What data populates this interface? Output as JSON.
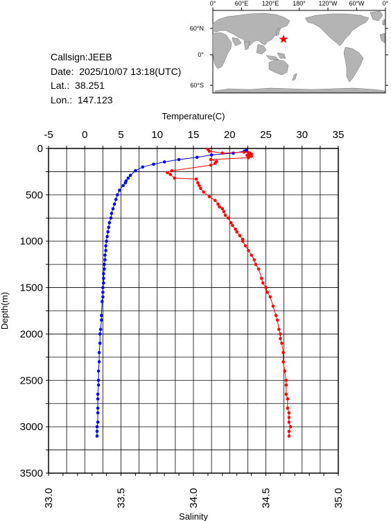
{
  "station": {
    "callsign_label": "Callsign:",
    "callsign": "JEEB",
    "date_label": "Date:",
    "date": "2025/10/07 13:18(UTC)",
    "lat_label": "Lat.:",
    "lat": "38.251",
    "lon_label": "Lon.:",
    "lon": "147.123"
  },
  "map": {
    "top_ticks": [
      "0°",
      "60°E",
      "120°E",
      "180°",
      "120°W",
      "60°W",
      "0°"
    ],
    "lat_ticks": [
      "60°N",
      "0°",
      "60°S"
    ],
    "land_color": "#b4b4b4",
    "ocean_color": "#ffffff",
    "marker_color": "#ff0000",
    "marker_icon": "star"
  },
  "chart_data": {
    "type": "scatter",
    "title": "",
    "y_axis": {
      "label": "Depth(m)",
      "range": [
        0,
        3500
      ],
      "inverted": true,
      "ticks": [
        "0",
        "500",
        "1000",
        "1500",
        "2000",
        "2500",
        "3000",
        "3500"
      ]
    },
    "x_top_axis": {
      "label": "Temperature(C)",
      "range": [
        -5,
        35
      ],
      "ticks": [
        "-5",
        "0",
        "5",
        "10",
        "15",
        "20",
        "25",
        "30",
        "35"
      ]
    },
    "x_bottom_axis": {
      "label": "Salinity",
      "range": [
        33.0,
        35.0
      ],
      "ticks": [
        "33.0",
        "33.5",
        "34.0",
        "34.5",
        "35.0"
      ]
    },
    "grid": true,
    "series": [
      {
        "color": "#0000ff",
        "axis": "top",
        "points": [
          [
            22.3,
            20
          ],
          [
            22.0,
            30
          ],
          [
            20.5,
            50
          ],
          [
            17.5,
            70
          ],
          [
            15.5,
            95
          ],
          [
            13.0,
            120
          ],
          [
            11.0,
            145
          ],
          [
            9.5,
            170
          ],
          [
            8.0,
            200
          ],
          [
            7.0,
            240
          ],
          [
            6.3,
            290
          ],
          [
            6.0,
            320
          ],
          [
            5.7,
            350
          ],
          [
            5.6,
            370
          ],
          [
            5.3,
            400
          ],
          [
            4.8,
            450
          ],
          [
            4.5,
            500
          ],
          [
            4.3,
            550
          ],
          [
            4.1,
            600
          ],
          [
            3.9,
            650
          ],
          [
            3.7,
            700
          ],
          [
            3.6,
            750
          ],
          [
            3.4,
            800
          ],
          [
            3.3,
            850
          ],
          [
            3.2,
            900
          ],
          [
            3.1,
            950
          ],
          [
            3.0,
            1000
          ],
          [
            2.9,
            1050
          ],
          [
            2.9,
            1100
          ],
          [
            2.8,
            1150
          ],
          [
            2.8,
            1200
          ],
          [
            2.7,
            1250
          ],
          [
            2.7,
            1300
          ],
          [
            2.6,
            1350
          ],
          [
            2.6,
            1400
          ],
          [
            2.6,
            1450
          ],
          [
            2.5,
            1500
          ],
          [
            2.5,
            1550
          ],
          [
            2.5,
            1600
          ],
          [
            2.4,
            1650
          ],
          [
            2.3,
            1800
          ],
          [
            2.3,
            1850
          ],
          [
            2.2,
            1950
          ],
          [
            2.1,
            2000
          ],
          [
            2.1,
            2100
          ],
          [
            2.0,
            2200
          ],
          [
            2.0,
            2300
          ],
          [
            1.9,
            2400
          ],
          [
            1.9,
            2500
          ],
          [
            1.9,
            2550
          ],
          [
            1.8,
            2650
          ],
          [
            1.8,
            2700
          ],
          [
            1.8,
            2800
          ],
          [
            1.8,
            2850
          ],
          [
            1.8,
            2950
          ],
          [
            1.7,
            3000
          ],
          [
            1.7,
            3050
          ],
          [
            1.7,
            3100
          ]
        ]
      },
      {
        "color": "#ff0000",
        "axis": "bottom",
        "points": [
          [
            34.1,
            10
          ],
          [
            34.11,
            30
          ],
          [
            34.2,
            50
          ],
          [
            34.35,
            40
          ],
          [
            34.38,
            45
          ],
          [
            34.39,
            50
          ],
          [
            34.4,
            60
          ],
          [
            34.39,
            70
          ],
          [
            34.37,
            75
          ],
          [
            34.4,
            85
          ],
          [
            34.38,
            100
          ],
          [
            34.12,
            120
          ],
          [
            34.16,
            140
          ],
          [
            34.15,
            160
          ],
          [
            34.12,
            180
          ],
          [
            33.85,
            240
          ],
          [
            33.82,
            260
          ],
          [
            33.84,
            280
          ],
          [
            33.87,
            320
          ],
          [
            34.02,
            330
          ],
          [
            34.03,
            370
          ],
          [
            34.04,
            400
          ],
          [
            34.05,
            430
          ],
          [
            34.07,
            470
          ],
          [
            34.11,
            520
          ],
          [
            34.15,
            560
          ],
          [
            34.17,
            600
          ],
          [
            34.18,
            630
          ],
          [
            34.2,
            650
          ],
          [
            34.21,
            680
          ],
          [
            34.22,
            720
          ],
          [
            34.24,
            750
          ],
          [
            34.26,
            800
          ],
          [
            34.27,
            830
          ],
          [
            34.29,
            870
          ],
          [
            34.3,
            900
          ],
          [
            34.32,
            940
          ],
          [
            34.34,
            980
          ],
          [
            34.34,
            1000
          ],
          [
            34.36,
            1050
          ],
          [
            34.38,
            1100
          ],
          [
            34.4,
            1150
          ],
          [
            34.42,
            1200
          ],
          [
            34.43,
            1250
          ],
          [
            34.45,
            1300
          ],
          [
            34.47,
            1400
          ],
          [
            34.48,
            1450
          ],
          [
            34.5,
            1500
          ],
          [
            34.51,
            1550
          ],
          [
            34.53,
            1600
          ],
          [
            34.55,
            1700
          ],
          [
            34.57,
            1800
          ],
          [
            34.58,
            1850
          ],
          [
            34.59,
            1950
          ],
          [
            34.6,
            2000
          ],
          [
            34.6,
            2050
          ],
          [
            34.61,
            2100
          ],
          [
            34.62,
            2200
          ],
          [
            34.62,
            2300
          ],
          [
            34.63,
            2400
          ],
          [
            34.64,
            2500
          ],
          [
            34.64,
            2550
          ],
          [
            34.64,
            2650
          ],
          [
            34.65,
            2700
          ],
          [
            34.65,
            2800
          ],
          [
            34.66,
            2850
          ],
          [
            34.66,
            2900
          ],
          [
            34.66,
            2950
          ],
          [
            34.67,
            3000
          ],
          [
            34.66,
            3050
          ],
          [
            34.66,
            3100
          ]
        ]
      }
    ]
  }
}
